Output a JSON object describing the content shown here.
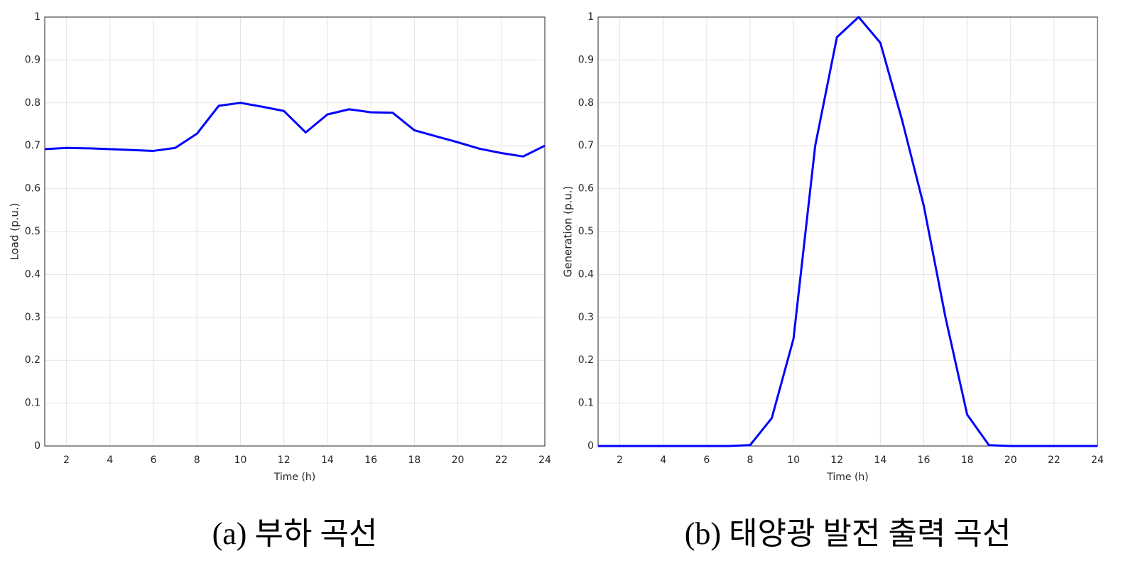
{
  "chart_data": [
    {
      "type": "line",
      "caption": "(a) 부하 곡선",
      "xlabel": "Time (h)",
      "ylabel": "Load (p.u.)",
      "x": [
        1,
        2,
        3,
        4,
        5,
        6,
        7,
        8,
        9,
        10,
        11,
        12,
        13,
        14,
        15,
        16,
        17,
        18,
        19,
        20,
        21,
        22,
        23,
        24
      ],
      "values": [
        0.692,
        0.695,
        0.694,
        0.692,
        0.69,
        0.688,
        0.695,
        0.728,
        0.793,
        0.8,
        0.791,
        0.781,
        0.731,
        0.773,
        0.785,
        0.778,
        0.777,
        0.736,
        0.722,
        0.708,
        0.693,
        0.683,
        0.675,
        0.7
      ],
      "color": "#0000ff",
      "xlim": [
        1,
        24
      ],
      "xticks": [
        2,
        4,
        6,
        8,
        10,
        12,
        14,
        16,
        18,
        20,
        22,
        24
      ],
      "ylim": [
        0,
        1
      ],
      "yticks": [
        0,
        0.1,
        0.2,
        0.3,
        0.4,
        0.5,
        0.6,
        0.7,
        0.8,
        0.9,
        1
      ],
      "grid": true
    },
    {
      "type": "line",
      "caption": "(b) 태양광 발전 출력 곡선",
      "xlabel": "Time (h)",
      "ylabel": "Generation (p.u.)",
      "x": [
        1,
        2,
        3,
        4,
        5,
        6,
        7,
        8,
        9,
        10,
        11,
        12,
        13,
        14,
        15,
        16,
        17,
        18,
        19,
        20,
        21,
        22,
        23,
        24
      ],
      "values": [
        0,
        0,
        0,
        0,
        0,
        0,
        0,
        0.002,
        0.065,
        0.25,
        0.7,
        0.953,
        1.0,
        0.94,
        0.76,
        0.56,
        0.3,
        0.073,
        0.002,
        0,
        0,
        0,
        0,
        0
      ],
      "color": "#0000ff",
      "xlim": [
        1,
        24
      ],
      "xticks": [
        2,
        4,
        6,
        8,
        10,
        12,
        14,
        16,
        18,
        20,
        22,
        24
      ],
      "ylim": [
        0,
        1
      ],
      "yticks": [
        0,
        0.1,
        0.2,
        0.3,
        0.4,
        0.5,
        0.6,
        0.7,
        0.8,
        0.9,
        1
      ],
      "grid": true
    }
  ]
}
